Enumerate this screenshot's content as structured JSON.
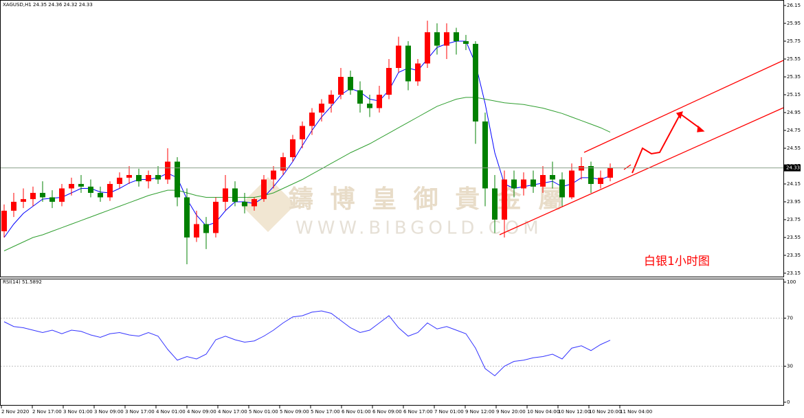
{
  "chart_data": [
    {
      "type": "candlestick",
      "title": "XAGUSD,H1 24.35 24.36 24.32 24.33",
      "annotation": "白银1小时图",
      "watermark": "鑄 博 皇 御 貴 金 屬",
      "watermark_url": "WWW.BIBGOLD.COM",
      "up_color": "#ff0000",
      "down_color": "#008000",
      "last_price": 24.33,
      "ylim": [
        23.15,
        26.15
      ],
      "yticks": [
        23.15,
        23.35,
        23.55,
        23.75,
        23.95,
        24.15,
        24.35,
        24.55,
        24.75,
        24.95,
        25.15,
        25.35,
        25.55,
        25.75,
        25.95,
        26.15
      ],
      "x_labels": [
        "2 Nov 2020",
        "2 Nov 17:00",
        "3 Nov 01:00",
        "3 Nov 09:00",
        "3 Nov 17:00",
        "4 Nov 01:00",
        "4 Nov 09:00",
        "4 Nov 17:00",
        "5 Nov 01:00",
        "5 Nov 09:00",
        "5 Nov 17:00",
        "6 Nov 01:00",
        "6 Nov 09:00",
        "6 Nov 17:00",
        "7 Nov 01:00",
        "9 Nov 12:00",
        "9 Nov 20:00",
        "10 Nov 04:00",
        "10 Nov 12:00",
        "10 Nov 20:00",
        "11 Nov 04:00"
      ],
      "open": [
        23.62,
        23.85,
        23.95,
        23.98,
        24.05,
        24.0,
        23.95,
        24.1,
        24.15,
        24.12,
        24.05,
        24.0,
        24.15,
        24.22,
        24.25,
        24.18,
        24.25,
        24.2,
        24.4,
        24.0,
        23.55,
        23.7,
        23.6,
        23.95,
        24.1,
        23.95,
        23.9,
        23.98,
        24.2,
        24.3,
        24.45,
        24.65,
        24.8,
        24.95,
        25.05,
        25.15,
        25.35,
        25.2,
        25.05,
        25.0,
        25.15,
        25.45,
        25.7,
        25.3,
        25.5,
        25.85,
        25.7,
        25.85,
        25.75,
        25.72,
        24.85,
        24.1,
        23.75,
        24.2,
        24.1,
        24.2,
        24.12,
        24.25,
        24.2,
        24.0,
        24.3,
        24.35,
        24.15,
        24.22
      ],
      "high": [
        23.92,
        24.05,
        24.1,
        24.12,
        24.18,
        24.08,
        24.15,
        24.22,
        24.25,
        24.2,
        24.12,
        24.18,
        24.28,
        24.35,
        24.32,
        24.3,
        24.35,
        24.55,
        24.45,
        24.1,
        23.85,
        23.78,
        24.0,
        24.25,
        24.18,
        24.05,
        24.0,
        24.25,
        24.35,
        24.5,
        24.7,
        24.85,
        25.0,
        25.1,
        25.2,
        25.45,
        25.42,
        25.3,
        25.15,
        25.25,
        25.55,
        25.8,
        25.75,
        25.55,
        25.98,
        25.95,
        25.95,
        25.9,
        25.82,
        25.75,
        24.95,
        24.25,
        24.3,
        24.3,
        24.28,
        24.3,
        24.35,
        24.4,
        24.28,
        24.38,
        24.45,
        24.4,
        24.3,
        24.38
      ],
      "low": [
        23.55,
        23.78,
        23.88,
        23.9,
        23.95,
        23.88,
        23.9,
        24.02,
        24.05,
        24.0,
        23.95,
        23.96,
        24.1,
        24.15,
        24.12,
        24.1,
        24.15,
        24.15,
        23.9,
        23.25,
        23.5,
        23.42,
        23.55,
        23.85,
        23.9,
        23.82,
        23.85,
        23.95,
        24.1,
        24.25,
        24.4,
        24.55,
        24.7,
        24.85,
        24.95,
        25.1,
        25.15,
        24.95,
        24.9,
        24.95,
        25.1,
        25.4,
        25.2,
        25.25,
        25.45,
        25.6,
        25.55,
        25.6,
        25.65,
        24.6,
        23.9,
        23.6,
        23.55,
        24.0,
        24.02,
        24.05,
        24.05,
        24.1,
        23.9,
        23.98,
        24.2,
        24.05,
        24.1,
        24.18
      ],
      "close": [
        23.85,
        23.95,
        23.98,
        24.05,
        24.0,
        23.95,
        24.1,
        24.15,
        24.12,
        24.05,
        24.0,
        24.15,
        24.22,
        24.25,
        24.18,
        24.25,
        24.2,
        24.4,
        24.0,
        23.55,
        23.7,
        23.6,
        23.95,
        24.1,
        23.95,
        23.9,
        23.98,
        24.2,
        24.3,
        24.45,
        24.65,
        24.8,
        24.95,
        25.05,
        25.15,
        25.35,
        25.2,
        25.05,
        25.0,
        25.15,
        25.45,
        25.7,
        25.3,
        25.5,
        25.85,
        25.7,
        25.85,
        25.75,
        25.72,
        24.85,
        24.1,
        23.75,
        24.2,
        24.1,
        24.2,
        24.12,
        24.25,
        24.2,
        24.0,
        24.3,
        24.35,
        24.15,
        24.22,
        24.33
      ],
      "series": [
        {
          "color": "#0000ff",
          "values": [
            23.55,
            23.7,
            23.82,
            23.9,
            23.98,
            23.99,
            24.0,
            24.05,
            24.1,
            24.1,
            24.06,
            24.05,
            24.1,
            24.16,
            24.2,
            24.2,
            24.22,
            24.27,
            24.22,
            23.98,
            23.8,
            23.68,
            23.72,
            23.85,
            23.95,
            23.95,
            23.93,
            24.0,
            24.12,
            24.25,
            24.4,
            24.58,
            24.75,
            24.9,
            25.02,
            25.15,
            25.22,
            25.18,
            25.1,
            25.08,
            25.2,
            25.4,
            25.45,
            25.42,
            25.55,
            25.68,
            25.72,
            25.75,
            25.75,
            25.5,
            25.05,
            24.5,
            24.15,
            24.1,
            24.12,
            24.14,
            24.16,
            24.18,
            24.12,
            24.15,
            24.22,
            24.22,
            24.2,
            24.24
          ]
        },
        {
          "color": "#2e9e2e",
          "values": [
            23.4,
            23.45,
            23.5,
            23.55,
            23.58,
            23.62,
            23.66,
            23.7,
            23.74,
            23.78,
            23.82,
            23.86,
            23.9,
            23.94,
            23.98,
            24.02,
            24.05,
            24.08,
            24.08,
            24.05,
            24.02,
            24.0,
            24.0,
            24.0,
            24.0,
            24.0,
            24.0,
            24.02,
            24.05,
            24.1,
            24.15,
            24.2,
            24.26,
            24.32,
            24.38,
            24.44,
            24.5,
            24.55,
            24.6,
            24.66,
            24.72,
            24.78,
            24.84,
            24.9,
            24.96,
            25.02,
            25.06,
            25.1,
            25.12,
            25.12,
            25.1,
            25.08,
            25.06,
            25.05,
            25.04,
            25.02,
            25.0,
            24.97,
            24.94,
            24.9,
            24.86,
            24.82,
            24.78,
            24.73
          ]
        }
      ]
    },
    {
      "type": "line",
      "title": "RSI(14) 51.5892",
      "color": "#3333ff",
      "ylim": [
        0,
        100
      ],
      "yticks": [
        0,
        30,
        70,
        100
      ],
      "values": [
        67,
        63,
        62,
        60,
        58,
        60,
        57,
        60,
        59,
        56,
        54,
        57,
        58,
        56,
        55,
        58,
        55,
        44,
        35,
        38,
        36,
        40,
        52,
        55,
        52,
        50,
        51,
        55,
        60,
        66,
        71,
        72,
        75,
        76,
        74,
        68,
        62,
        58,
        60,
        66,
        72,
        62,
        55,
        58,
        66,
        61,
        63,
        60,
        57,
        45,
        28,
        22,
        30,
        34,
        35,
        37,
        38,
        40,
        36,
        45,
        47,
        43,
        48,
        51.5892
      ]
    }
  ]
}
